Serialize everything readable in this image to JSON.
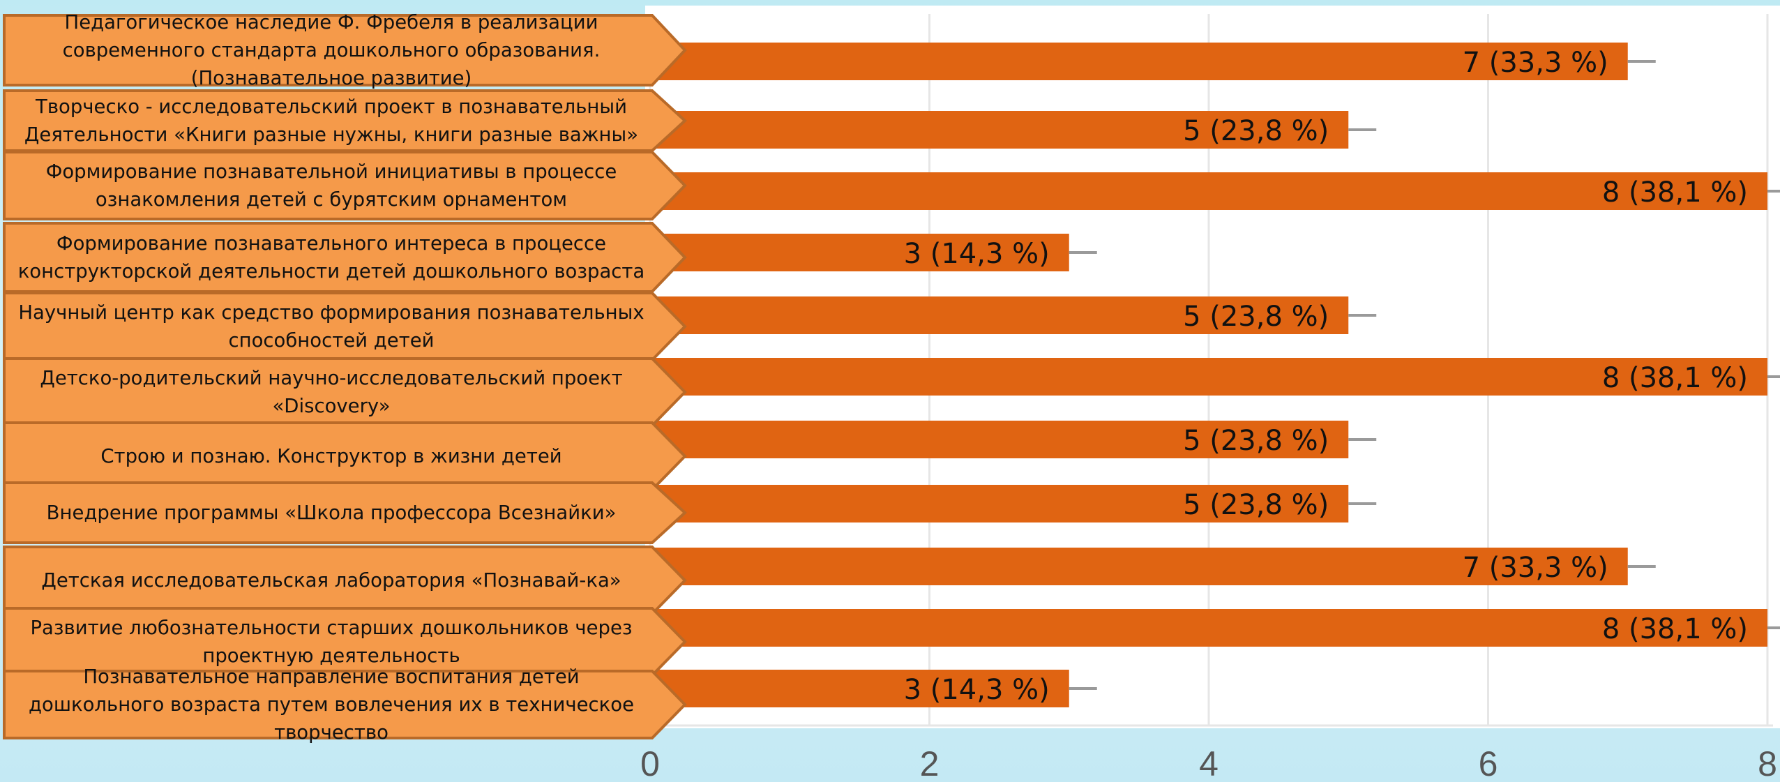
{
  "chart_data": {
    "type": "bar",
    "orientation": "horizontal",
    "categories": [
      "Педагогическое наследие Ф. Фребеля в реализации современного стандарта дошкольного образования. (Познавательное развитие)",
      "Творческо - исследовательский проект в познавательный Деятельности «Книги разные нужны, книги разные важны»",
      "Формирование познавательной инициативы в процессе ознакомления детей с бурятским орнаментом",
      "Формирование познавательного интереса в процессе конструкторской деятельности детей дошкольного возраста",
      "Научный центр как средство формирования познавательных способностей детей",
      "Детско-родительский научно-исследовательский проект «Discovery»",
      "Строю и познаю. Конструктор в жизни детей",
      "Внедрение программы «Школа профессора Всезнайки»",
      "Детская исследовательская лаборатория «Познавай-ка»",
      "Развитие любознательности старших дошкольников через проектную деятельность",
      "Познавательное направление воспитания детей дошкольного возраста путем вовлечения их в техническое творчество"
    ],
    "values": [
      7,
      5,
      8,
      3,
      5,
      8,
      5,
      5,
      7,
      8,
      3
    ],
    "data_labels": [
      "7 (33,3 %)",
      "5 (23,8 %)",
      "8 (38,1 %)",
      "3 (14,3 %)",
      "5 (23,8 %)",
      "8 (38,1 %)",
      "5 (23,8 %)",
      "5 (23,8 %)",
      "7 (33,3 %)",
      "8 (38,1 %)",
      "3 (14,3 %)"
    ],
    "xlim": [
      0,
      8
    ],
    "x_ticks": [
      "0",
      "2",
      "4",
      "6",
      "8"
    ],
    "grid": true,
    "colors": {
      "bar": "#e06412",
      "label_box": "#f59a4a",
      "label_border": "#b96a28",
      "grid": "#e6e6e6",
      "tick_text": "#555555",
      "error_bar": "#9a9a9a"
    }
  }
}
